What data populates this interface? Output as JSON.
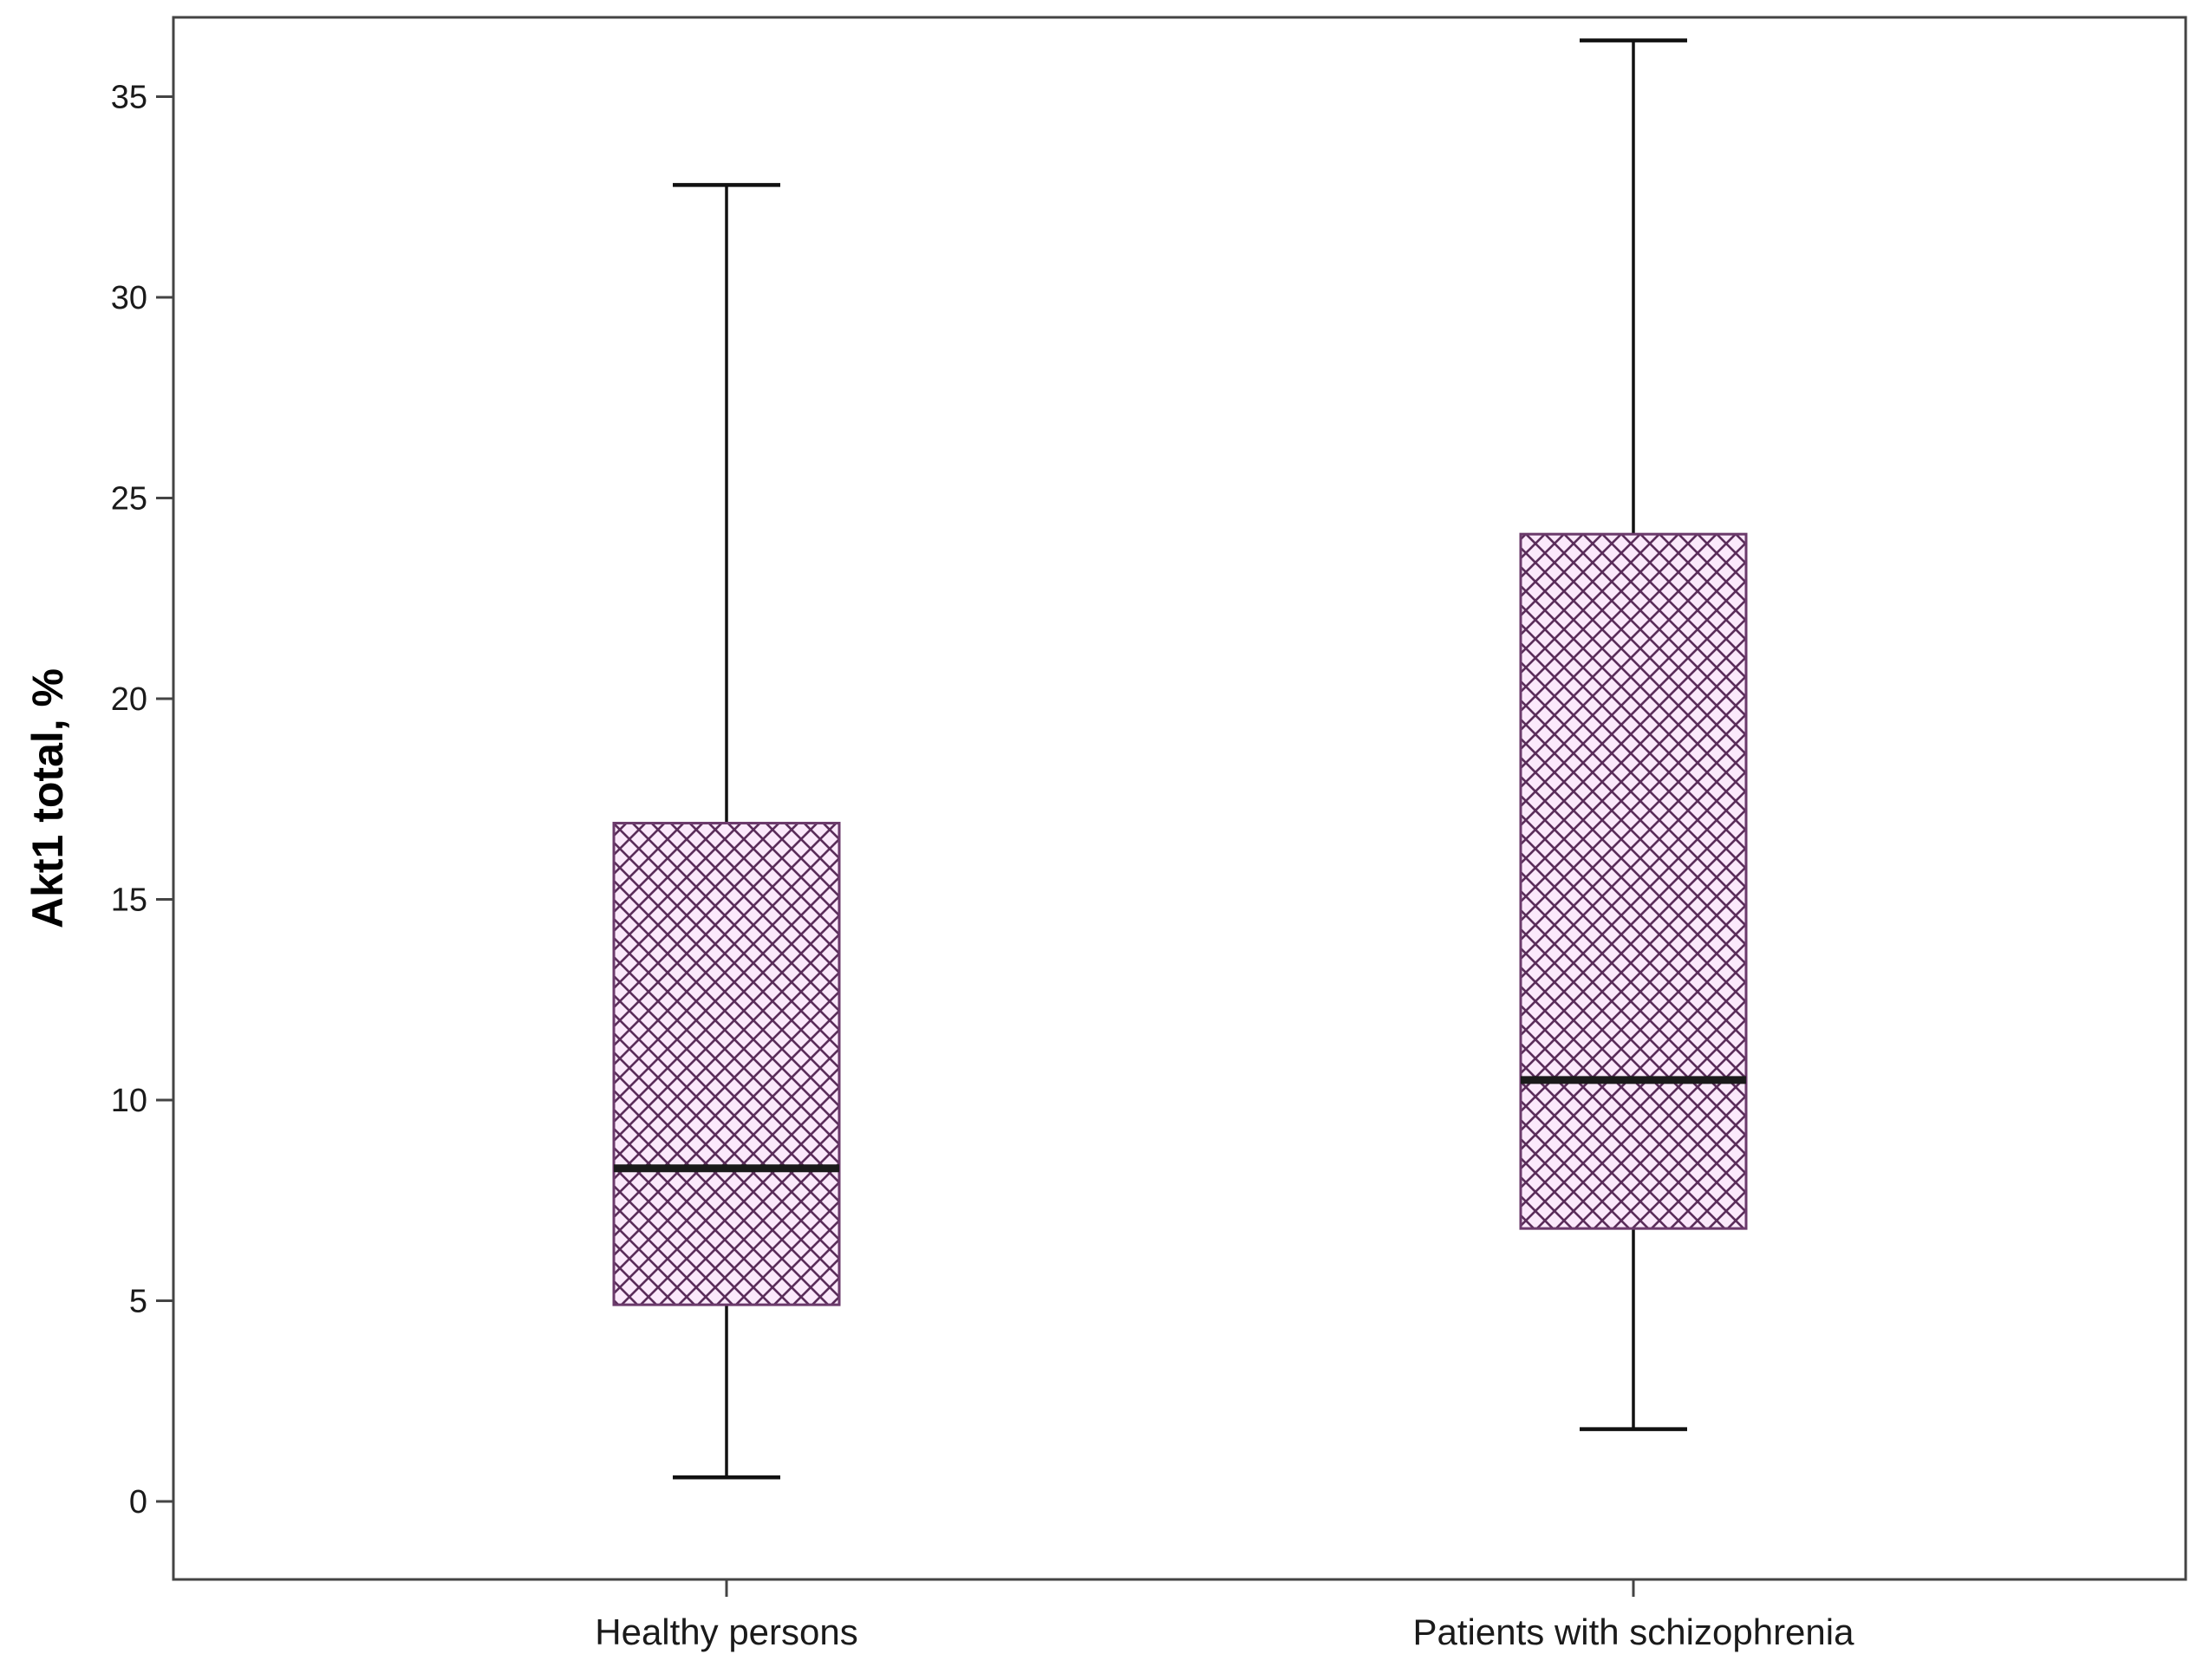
{
  "chart_data": {
    "type": "boxplot",
    "title": "",
    "xlabel": "",
    "ylabel": "Akt1 total, %",
    "ylim": [
      -2,
      37
    ],
    "yticks": [
      0,
      5,
      10,
      15,
      20,
      25,
      30,
      35
    ],
    "grid": false,
    "legend": "none",
    "categories": [
      "Healthy persons",
      "Patients with schizophrenia"
    ],
    "boxes": [
      {
        "category": "Healthy persons",
        "min": 0.6,
        "q1": 4.9,
        "median": 8.3,
        "q3": 16.9,
        "max": 32.8
      },
      {
        "category": "Patients with schizophrenia",
        "min": 1.8,
        "q1": 6.8,
        "median": 10.5,
        "q3": 24.1,
        "max": 36.4
      }
    ],
    "colors": {
      "box_fill": "#fbe9fb",
      "box_hatch": "#5a2d5a",
      "box_border": "#6b3a6b",
      "median": "#1a1a1a",
      "whisker": "#111111",
      "frame": "#444444"
    }
  }
}
